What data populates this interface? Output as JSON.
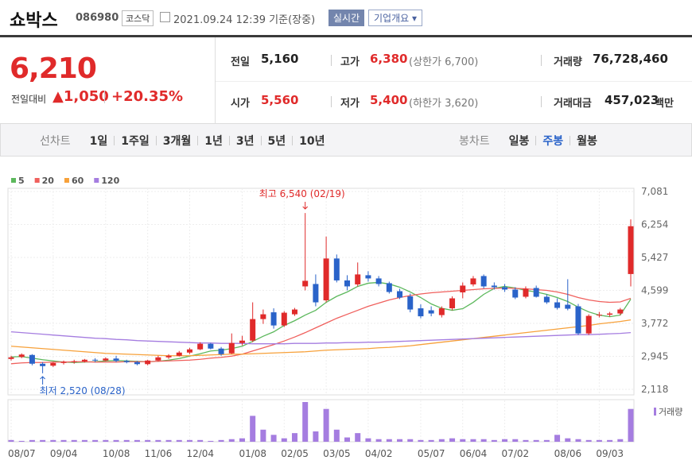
{
  "header": {
    "title": "쇼박스",
    "code": "086980",
    "market": "코스닥",
    "timestamp": "2021.09.24 12:39 기준(장중)",
    "buttons": [
      "실시간",
      "기업개요"
    ]
  },
  "quote": {
    "price": "6,210",
    "change_label": "전일대비",
    "change": "1,050",
    "change_pct": "+20.35%",
    "stats": [
      {
        "label": "전일",
        "value": "5,160"
      },
      {
        "label": "고가",
        "value": "6,380",
        "note": "(상한가 6,700)"
      },
      {
        "label": "거래량",
        "value": "76,728,460"
      },
      {
        "label": "시가",
        "value": "5,560"
      },
      {
        "label": "저가",
        "value": "5,400",
        "note": "(하한가 3,620)"
      },
      {
        "label": "거래대금",
        "value": "457,023",
        "unit": "백만"
      }
    ]
  },
  "tabs": {
    "line_label": "선차트",
    "line_periods": [
      "1일",
      "1주일",
      "3개월",
      "1년",
      "3년",
      "5년",
      "10년"
    ],
    "candle_label": "봉차트",
    "candle_periods": [
      "일봉",
      "주봉",
      "월봉"
    ],
    "selected": 1
  },
  "chart_data": {
    "type": "candlestick",
    "categories": [
      "08/07",
      null,
      null,
      null,
      "09/04",
      null,
      null,
      null,
      null,
      "10/08",
      null,
      null,
      null,
      "11/06",
      null,
      null,
      null,
      "12/04",
      null,
      null,
      null,
      null,
      "01/08",
      null,
      null,
      null,
      "02/05",
      null,
      null,
      null,
      "03/05",
      null,
      null,
      null,
      "04/02",
      null,
      null,
      null,
      null,
      "05/07",
      null,
      null,
      null,
      "06/04",
      null,
      null,
      null,
      "07/02",
      null,
      null,
      null,
      null,
      "08/06",
      null,
      null,
      null,
      "09/03",
      null,
      null,
      null
    ],
    "open": [
      2880,
      2930,
      2980,
      2760,
      2710,
      2780,
      2800,
      2820,
      2860,
      2840,
      2890,
      2830,
      2800,
      2750,
      2840,
      2920,
      2960,
      3040,
      3120,
      3260,
      3140,
      3020,
      3280,
      3340,
      3880,
      4050,
      3720,
      4000,
      4700,
      4760,
      4350,
      5400,
      4850,
      4750,
      4980,
      4900,
      4780,
      4580,
      4450,
      4150,
      4100,
      3980,
      4150,
      4550,
      4750,
      4960,
      4720,
      4680,
      4620,
      4440,
      4660,
      4440,
      4300,
      4240,
      4200,
      3520,
      3980,
      3990,
      4020,
      5010
    ],
    "high": [
      2960,
      3020,
      3000,
      2800,
      2800,
      2840,
      2860,
      2880,
      2900,
      2920,
      2960,
      2860,
      2830,
      2860,
      2960,
      3000,
      3080,
      3160,
      3300,
      3280,
      3180,
      3520,
      3460,
      4300,
      4120,
      4150,
      4080,
      4160,
      6540,
      5000,
      5950,
      5500,
      4980,
      5300,
      5080,
      4960,
      4820,
      4640,
      4520,
      4250,
      4200,
      4200,
      4450,
      4800,
      4960,
      5000,
      4800,
      4760,
      4680,
      4700,
      4720,
      4500,
      4400,
      4880,
      4260,
      4000,
      4060,
      4060,
      4160,
      6380
    ],
    "low": [
      2840,
      2900,
      2720,
      2520,
      2680,
      2740,
      2760,
      2790,
      2800,
      2820,
      2800,
      2770,
      2720,
      2720,
      2820,
      2880,
      2940,
      3000,
      3100,
      3120,
      2960,
      3000,
      3220,
      3300,
      3760,
      3640,
      3680,
      3960,
      4600,
      4200,
      4300,
      4800,
      4600,
      4700,
      4820,
      4700,
      4520,
      4380,
      4050,
      3900,
      3950,
      3920,
      4100,
      4400,
      4700,
      4650,
      4620,
      4560,
      4380,
      4400,
      4420,
      4260,
      4120,
      4100,
      3480,
      3480,
      3920,
      3940,
      3980,
      4700
    ],
    "close": [
      2920,
      2990,
      2760,
      2700,
      2780,
      2810,
      2820,
      2860,
      2840,
      2890,
      2830,
      2800,
      2750,
      2840,
      2920,
      2960,
      3040,
      3120,
      3260,
      3140,
      3000,
      3280,
      3340,
      3880,
      4000,
      3720,
      4040,
      4120,
      4840,
      4300,
      5400,
      4850,
      4700,
      5000,
      4900,
      4760,
      4560,
      4420,
      4120,
      3950,
      4020,
      4150,
      4400,
      4720,
      4900,
      4700,
      4680,
      4620,
      4420,
      4640,
      4440,
      4300,
      4160,
      4140,
      3520,
      3960,
      3990,
      4020,
      4120,
      6210
    ],
    "up_color": "#e02a2a",
    "down_color": "#2a63c9",
    "ylim": [
      2118,
      7081
    ],
    "yticks": [
      {
        "value": 7081,
        "label": "7,081"
      },
      {
        "value": 6254,
        "label": "6,254"
      },
      {
        "value": 5427,
        "label": "5,427"
      },
      {
        "value": 4599,
        "label": "4,599"
      },
      {
        "value": 3772,
        "label": "3,772"
      },
      {
        "value": 2945,
        "label": "2,945"
      },
      {
        "value": 2118,
        "label": "2,118"
      }
    ],
    "grid": true,
    "moving_averages": [
      {
        "name": "5",
        "color": "#5cb85c",
        "values": [
          2930,
          2940,
          2900,
          2860,
          2830,
          2800,
          2790,
          2800,
          2810,
          2830,
          2840,
          2830,
          2820,
          2810,
          2820,
          2850,
          2890,
          2950,
          3010,
          3080,
          3100,
          3140,
          3200,
          3320,
          3450,
          3560,
          3720,
          3840,
          3980,
          4100,
          4300,
          4450,
          4560,
          4700,
          4780,
          4800,
          4760,
          4680,
          4560,
          4420,
          4260,
          4150,
          4100,
          4140,
          4300,
          4500,
          4650,
          4700,
          4660,
          4600,
          4560,
          4500,
          4420,
          4320,
          4180,
          4060,
          3980,
          3940,
          3980,
          4380
        ]
      },
      {
        "name": "20",
        "color": "#f0605d",
        "values": [
          2760,
          2780,
          2790,
          2790,
          2800,
          2800,
          2810,
          2810,
          2800,
          2800,
          2800,
          2810,
          2810,
          2810,
          2820,
          2830,
          2840,
          2850,
          2870,
          2900,
          2920,
          2950,
          3000,
          3080,
          3160,
          3240,
          3330,
          3430,
          3540,
          3660,
          3780,
          3900,
          4000,
          4100,
          4200,
          4280,
          4360,
          4420,
          4470,
          4510,
          4540,
          4560,
          4580,
          4600,
          4620,
          4640,
          4650,
          4660,
          4650,
          4640,
          4620,
          4600,
          4560,
          4500,
          4420,
          4360,
          4320,
          4300,
          4310,
          4400
        ]
      },
      {
        "name": "60",
        "color": "#f7a13a",
        "values": [
          3200,
          3180,
          3160,
          3140,
          3120,
          3100,
          3080,
          3060,
          3040,
          3020,
          3010,
          3000,
          2990,
          2980,
          2970,
          2960,
          2960,
          2960,
          2970,
          2980,
          2990,
          3000,
          3000,
          3010,
          3020,
          3030,
          3040,
          3050,
          3060,
          3080,
          3100,
          3110,
          3120,
          3130,
          3140,
          3160,
          3170,
          3190,
          3210,
          3240,
          3270,
          3300,
          3330,
          3360,
          3390,
          3420,
          3450,
          3480,
          3510,
          3540,
          3570,
          3600,
          3630,
          3660,
          3690,
          3720,
          3760,
          3790,
          3820,
          3860
        ]
      },
      {
        "name": "120",
        "color": "#a57de0",
        "values": [
          3560,
          3540,
          3520,
          3500,
          3480,
          3460,
          3440,
          3420,
          3400,
          3390,
          3370,
          3360,
          3340,
          3330,
          3320,
          3310,
          3300,
          3290,
          3280,
          3280,
          3270,
          3270,
          3270,
          3260,
          3260,
          3260,
          3260,
          3270,
          3270,
          3270,
          3280,
          3280,
          3290,
          3290,
          3300,
          3300,
          3310,
          3320,
          3330,
          3340,
          3350,
          3360,
          3370,
          3380,
          3390,
          3400,
          3410,
          3420,
          3430,
          3440,
          3450,
          3460,
          3470,
          3480,
          3490,
          3490,
          3500,
          3510,
          3520,
          3540
        ]
      }
    ],
    "volume": {
      "name": "거래량",
      "color": "#a57de0",
      "values": [
        2,
        1,
        2,
        2,
        2,
        2,
        2,
        2,
        2,
        2,
        2,
        2,
        2,
        2,
        2,
        2,
        2,
        2,
        2,
        1,
        2,
        3,
        4,
        30,
        14,
        8,
        4,
        10,
        46,
        12,
        38,
        14,
        5,
        10,
        4,
        3,
        3,
        3,
        3,
        2,
        2,
        3,
        4,
        3,
        3,
        3,
        2,
        3,
        3,
        2,
        2,
        2,
        8,
        4,
        3,
        2,
        2,
        2,
        3,
        38
      ]
    },
    "high_annotation": "최고 6,540 (02/19)",
    "low_annotation": "최저 2,520 (08/28)"
  }
}
